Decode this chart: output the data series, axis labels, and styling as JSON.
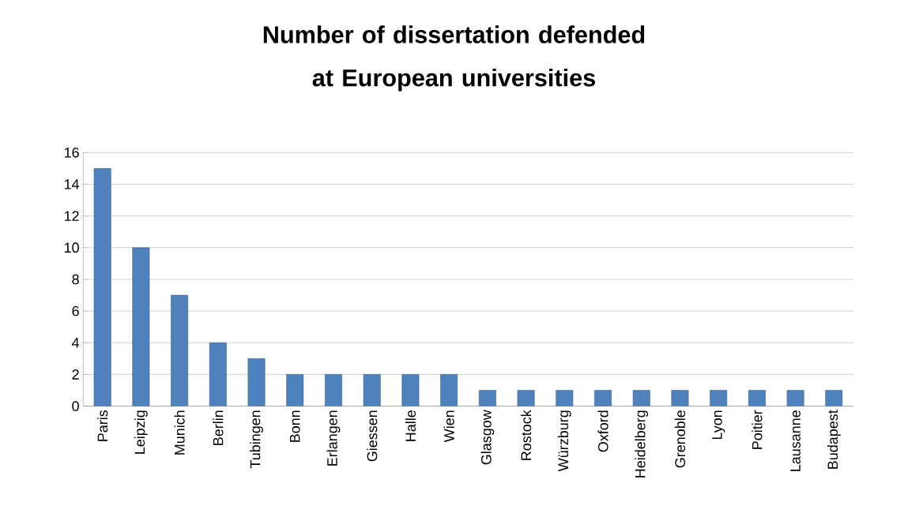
{
  "chart_data": {
    "type": "bar",
    "title": "Number of dissertation defended at European universities",
    "categories": [
      "Paris",
      "Leipzig",
      "Munich",
      "Berlin",
      "Tubingen",
      "Bonn",
      "Erlangen",
      "Giessen",
      "Halle",
      "Wien",
      "Glasgow",
      "Rostock",
      "Würzburg",
      "Oxford",
      "Heidelberg",
      "Grenoble",
      "Lyon",
      "Poitier",
      "Lausanne",
      "Budapest"
    ],
    "values": [
      15,
      10,
      7,
      4,
      3,
      2,
      2,
      2,
      2,
      2,
      1,
      1,
      1,
      1,
      1,
      1,
      1,
      1,
      1,
      1
    ],
    "color": "#4f81bd",
    "ylim": [
      0,
      16
    ],
    "yticks": [
      0,
      2,
      4,
      6,
      8,
      10,
      12,
      14,
      16
    ],
    "grid": "y"
  }
}
